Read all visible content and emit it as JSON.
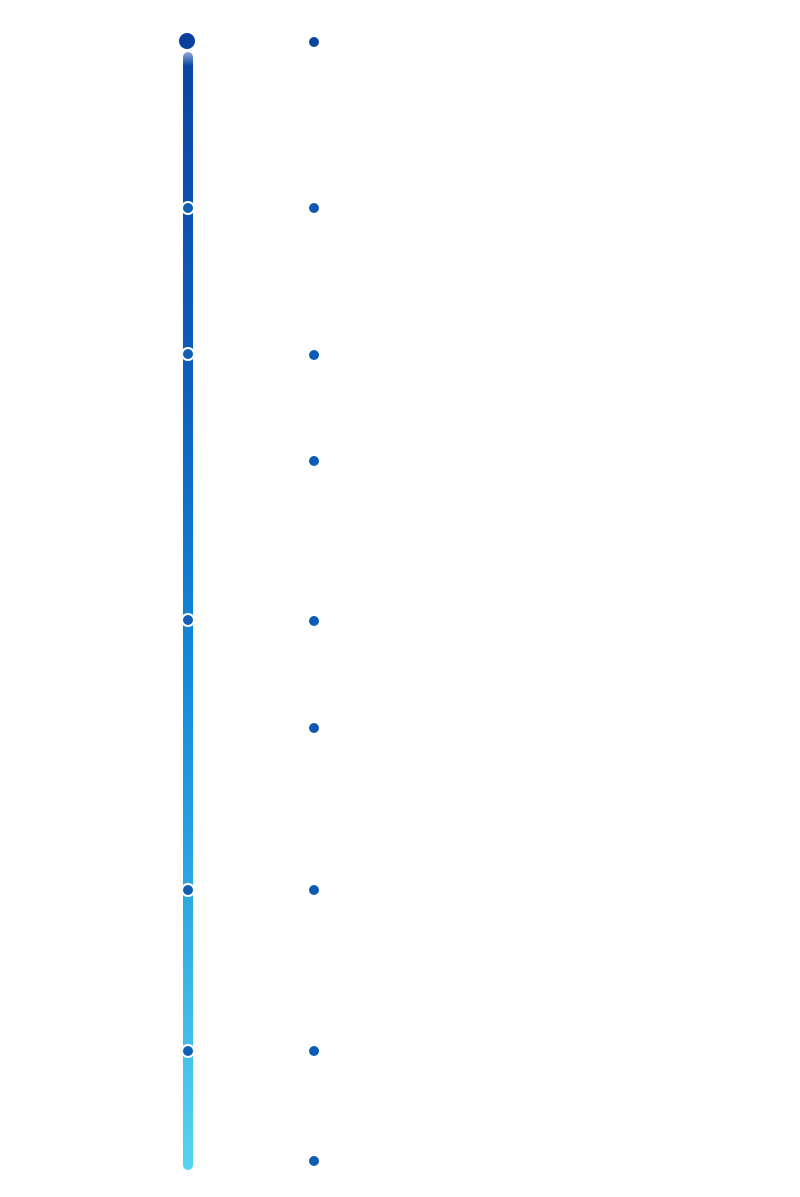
{
  "timeline": {
    "colors": {
      "track_top": "#0a45a4",
      "track_bottom": "#57d3f2",
      "marker": "#0e5fb6",
      "entry_dot": "#0e5bb4"
    },
    "markers": [
      {
        "name": "start"
      },
      {
        "name": "marker-1"
      },
      {
        "name": "marker-2"
      },
      {
        "name": "marker-3"
      },
      {
        "name": "marker-4"
      },
      {
        "name": "marker-5"
      }
    ],
    "entries": [
      {
        "name": "entry-1"
      },
      {
        "name": "entry-2"
      },
      {
        "name": "entry-3"
      },
      {
        "name": "entry-4"
      },
      {
        "name": "entry-5"
      },
      {
        "name": "entry-6"
      },
      {
        "name": "entry-7"
      },
      {
        "name": "entry-8"
      },
      {
        "name": "entry-9"
      }
    ]
  }
}
